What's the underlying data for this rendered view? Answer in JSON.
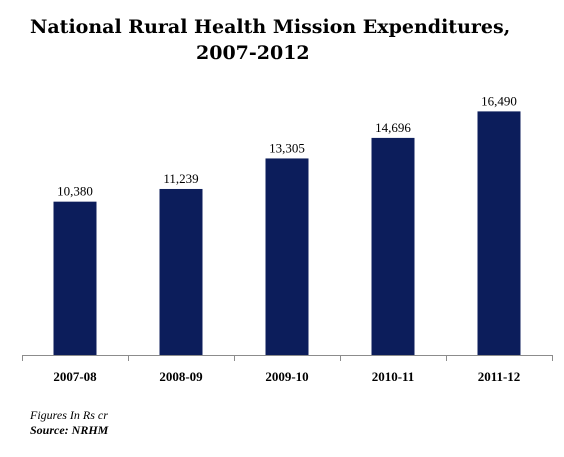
{
  "title_line1": "National Rural Health Mission Expenditures,",
  "title_line2": "2007-2012",
  "note_figures": "Figures In Rs cr",
  "note_source": "Source: NRHM",
  "chart_data": {
    "type": "bar",
    "title": "National Rural Health Mission Expenditures, 2007-2012",
    "categories": [
      "2007-08",
      "2008-09",
      "2009-10",
      "2010-11",
      "2011-12"
    ],
    "values": [
      10380,
      11239,
      13305,
      14696,
      16490
    ],
    "value_labels": [
      "10,380",
      "11,239",
      "13,305",
      "14,696",
      "16,490"
    ],
    "xlabel": "",
    "ylabel": "",
    "ylim": [
      0,
      22000
    ],
    "grid": false,
    "bar_color": "#0c1d5b"
  }
}
